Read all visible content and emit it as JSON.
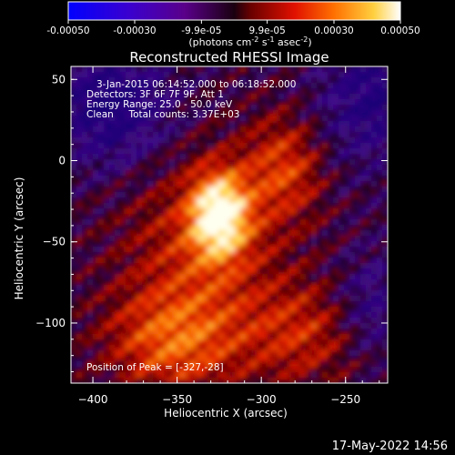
{
  "colorbar": {
    "tick_labels": [
      "-0.00050",
      "-0.00030",
      "-9.9e-05",
      "9.9e-05",
      "0.00030",
      "0.00050"
    ],
    "tick_values": [
      -0.0005,
      -0.0003,
      -9.9e-05,
      9.9e-05,
      0.0003,
      0.0005
    ],
    "range": [
      -0.0005,
      0.0005
    ],
    "units_text": "(photons cm",
    "units_sup1": "-2",
    "units_mid": " s",
    "units_sup2": "-1",
    "units_mid2": " asec",
    "units_sup3": "-2",
    "units_close": ")"
  },
  "chart_data": {
    "type": "heatmap",
    "title": "Reconstructed RHESSI Image",
    "xlabel": "Heliocentric X (arcsec)",
    "ylabel": "Heliocentric Y (arcsec)",
    "xlim": [
      -413,
      -225
    ],
    "ylim": [
      -137,
      58
    ],
    "x_ticks": [
      -400,
      -350,
      -300,
      -250
    ],
    "y_ticks": [
      50,
      0,
      -50,
      -100
    ],
    "peak": [
      -327,
      -28
    ],
    "info_lines": [
      "3-Jan-2015 06:14:52.000 to 06:18:52.000",
      "Detectors: 3F 6F 7F 9F, Att 1",
      "Energy Range: 25.0 - 50.0 keV",
      "Clean     Total counts: 3.37E+03"
    ],
    "peak_label": "Position of Peak = [-327,-28]"
  },
  "footer": {
    "timestamp": "17-May-2022 14:56"
  }
}
